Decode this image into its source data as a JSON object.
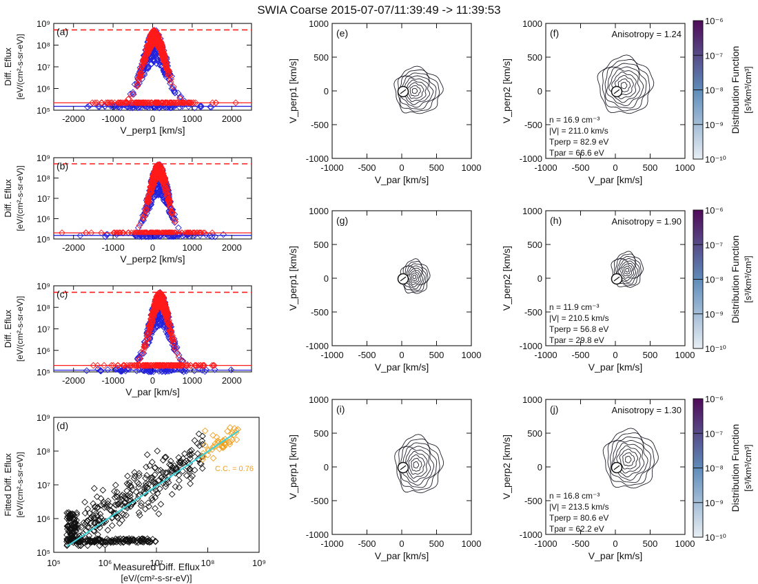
{
  "title": "SWIA Coarse 2015-07-07/11:39:49 -> 11:39:53",
  "colors": {
    "measured": "#2222dd",
    "fitted": "#ff1a1a",
    "scatter": "#111111",
    "highlight": "#f0a020",
    "fitline": "#40d0d8",
    "cmap_low": "#e8eef4",
    "cmap_mid": "#5e8cba",
    "cmap_high": "#500a58"
  },
  "chart_data": [
    {
      "panel": "(a)",
      "type": "scatter",
      "xlabel": "V_perp1 [km/s]",
      "ylabel": "Diff. Eflux",
      "ylabel2": "[eV/(cm²-s-sr-eV)]",
      "xlim": [
        -2500,
        2500
      ],
      "ylim_log": [
        5,
        9
      ],
      "xticks": [
        "-2000",
        "-1000",
        "0",
        "1000",
        "2000"
      ],
      "yticks": [
        "10⁵",
        "10⁶",
        "10⁷",
        "10⁸",
        "10⁹"
      ],
      "center": 50,
      "width": 280,
      "peak": 500000000.0,
      "floor": 220000.0,
      "dashed_level": 500000000.0,
      "fit_floor": 220000.0,
      "measured_floor": 150000.0
    },
    {
      "panel": "(b)",
      "type": "scatter",
      "xlabel": "V_perp2 [km/s]",
      "ylabel": "Diff. Eflux",
      "ylabel2": "[eV/(cm²-s-sr-eV)]",
      "xlim": [
        -2500,
        2500
      ],
      "ylim_log": [
        5,
        9
      ],
      "xticks": [
        "-2000",
        "-1000",
        "0",
        "1000",
        "2000"
      ],
      "yticks": [
        "10⁵",
        "10⁶",
        "10⁷",
        "10⁸",
        "10⁹"
      ],
      "center": 150,
      "width": 230,
      "peak": 500000000.0,
      "floor": 200000.0,
      "dashed_level": 500000000.0,
      "fit_floor": 200000.0,
      "measured_floor": 150000.0
    },
    {
      "panel": "(c)",
      "type": "scatter",
      "xlabel": "V_par [km/s]",
      "ylabel": "Diff. Eflux",
      "ylabel2": "[eV/(cm²-s-sr-eV)]",
      "xlim": [
        -2500,
        2500
      ],
      "ylim_log": [
        5,
        9
      ],
      "xticks": [
        "-2000",
        "-1000",
        "0",
        "1000",
        "2000"
      ],
      "yticks": [
        "10⁵",
        "10⁶",
        "10⁷",
        "10⁸",
        "10⁹"
      ],
      "center": 180,
      "width": 240,
      "peak": 500000000.0,
      "floor": 200000.0,
      "dashed_level": 500000000.0,
      "fit_floor": 200000.0,
      "measured_floor": 120000.0
    },
    {
      "panel": "(d)",
      "type": "scatter",
      "xlabel": "Measured Diff. Eflux",
      "xlabel2": "[eV/(cm²-s-sr-eV)]",
      "ylabel": "Fitted Diff. Eflux",
      "ylabel2": "[eV/(cm²-s-sr-eV)]",
      "xlim_log": [
        5,
        9
      ],
      "ylim_log": [
        5,
        9
      ],
      "xticks": [
        "10⁵",
        "10⁶",
        "10⁷",
        "10⁸",
        "10⁹"
      ],
      "yticks": [
        "10⁵",
        "10⁶",
        "10⁷",
        "10⁸",
        "10⁹"
      ],
      "cc_label": "C.C. = 0.76",
      "fit_line": [
        [
          180000.0,
          150000.0
        ],
        [
          400000000.0,
          400000000.0
        ]
      ]
    },
    {
      "panel": "(e)",
      "type": "contour",
      "xlabel": "V_par [km/s]",
      "ylabel": "V_perp1 [km/s]",
      "xlim": [
        -1000,
        1000
      ],
      "ylim": [
        -1000,
        1000
      ],
      "xticks": [
        "-1000",
        "-500",
        "0",
        "500",
        "1000"
      ],
      "yticks": [
        "-1000",
        "-500",
        "0",
        "500",
        "1000"
      ],
      "peak": [
        180,
        0
      ],
      "rx": 370,
      "ry": 340,
      "skew": 0.25,
      "outer_scale": 1.0
    },
    {
      "panel": "(f)",
      "type": "contour",
      "anisotropy": "Anisotropy = 1.24",
      "xlabel": "V_par [km/s]",
      "ylabel": "V_perp2 [km/s]",
      "xlim": [
        -1000,
        1000
      ],
      "ylim": [
        -1000,
        1000
      ],
      "xticks": [
        "-1000",
        "-500",
        "0",
        "500",
        "1000"
      ],
      "yticks": [
        "-1000",
        "-500",
        "0",
        "500",
        "1000"
      ],
      "peak": [
        120,
        80
      ],
      "rx": 400,
      "ry": 420,
      "skew": 0.1,
      "outer_scale": 1.0,
      "n": "n = 16.9 cm⁻³",
      "v": "|V| = 211.0 km/s",
      "tperp": "Tperp = 82.9 eV",
      "tpar": "Tpar = 66.6 eV"
    },
    {
      "panel": "(g)",
      "type": "contour",
      "xlabel": "V_par [km/s]",
      "ylabel": "V_perp1 [km/s]",
      "xlim": [
        -1000,
        1000
      ],
      "ylim": [
        -1000,
        1000
      ],
      "xticks": [
        "-1000",
        "-500",
        "0",
        "500",
        "1000"
      ],
      "yticks": [
        "-1000",
        "-500",
        "0",
        "500",
        "1000"
      ],
      "peak": [
        180,
        20
      ],
      "rx": 210,
      "ry": 250,
      "skew": 0.1,
      "outer_scale": 1.0
    },
    {
      "panel": "(h)",
      "type": "contour",
      "anisotropy": "Anisotropy = 1.90",
      "xlabel": "V_par [km/s]",
      "ylabel": "V_perp2 [km/s]",
      "xlim": [
        -1000,
        1000
      ],
      "ylim": [
        -1000,
        1000
      ],
      "xticks": [
        "-1000",
        "-500",
        "0",
        "500",
        "1000"
      ],
      "yticks": [
        "-1000",
        "-500",
        "0",
        "500",
        "1000"
      ],
      "peak": [
        170,
        120
      ],
      "rx": 220,
      "ry": 260,
      "skew": 0.0,
      "outer_scale": 1.0,
      "n": "n = 11.9 cm⁻³",
      "v": "|V| = 210.5 km/s",
      "tperp": "Tperp = 56.8 eV",
      "tpar": "Tpar = 29.8 eV"
    },
    {
      "panel": "(i)",
      "type": "contour",
      "xlabel": "V_par [km/s]",
      "ylabel": "V_perp1 [km/s]",
      "xlim": [
        -1000,
        1000
      ],
      "ylim": [
        -1000,
        1000
      ],
      "xticks": [
        "-1000",
        "-500",
        "0",
        "500",
        "1000"
      ],
      "yticks": [
        "-1000",
        "-500",
        "0",
        "500",
        "1000"
      ],
      "peak": [
        200,
        30
      ],
      "rx": 360,
      "ry": 420,
      "skew": 0.2,
      "outer_scale": 1.0
    },
    {
      "panel": "(j)",
      "type": "contour",
      "anisotropy": "Anisotropy = 1.30",
      "xlabel": "V_par [km/s]",
      "ylabel": "V_perp2 [km/s]",
      "xlim": [
        -1000,
        1000
      ],
      "ylim": [
        -1000,
        1000
      ],
      "xticks": [
        "-1000",
        "-500",
        "0",
        "500",
        "1000"
      ],
      "yticks": [
        "-1000",
        "-500",
        "0",
        "500",
        "1000"
      ],
      "peak": [
        180,
        110
      ],
      "rx": 400,
      "ry": 430,
      "skew": 0.15,
      "outer_scale": 1.0,
      "n": "n = 16.8 cm⁻³",
      "v": "|V| = 213.5 km/s",
      "tperp": "Tperp = 80.6 eV",
      "tpar": "Tpar = 62.2 eV"
    }
  ],
  "colorbar": {
    "label": "Distribution Function",
    "units": "[s³/km³/cm³]",
    "ticks": [
      "10⁻⁶",
      "10⁻⁷",
      "10⁻⁸",
      "10⁻⁹",
      "10⁻¹⁰"
    ],
    "range_log": [
      -10,
      -6
    ]
  }
}
